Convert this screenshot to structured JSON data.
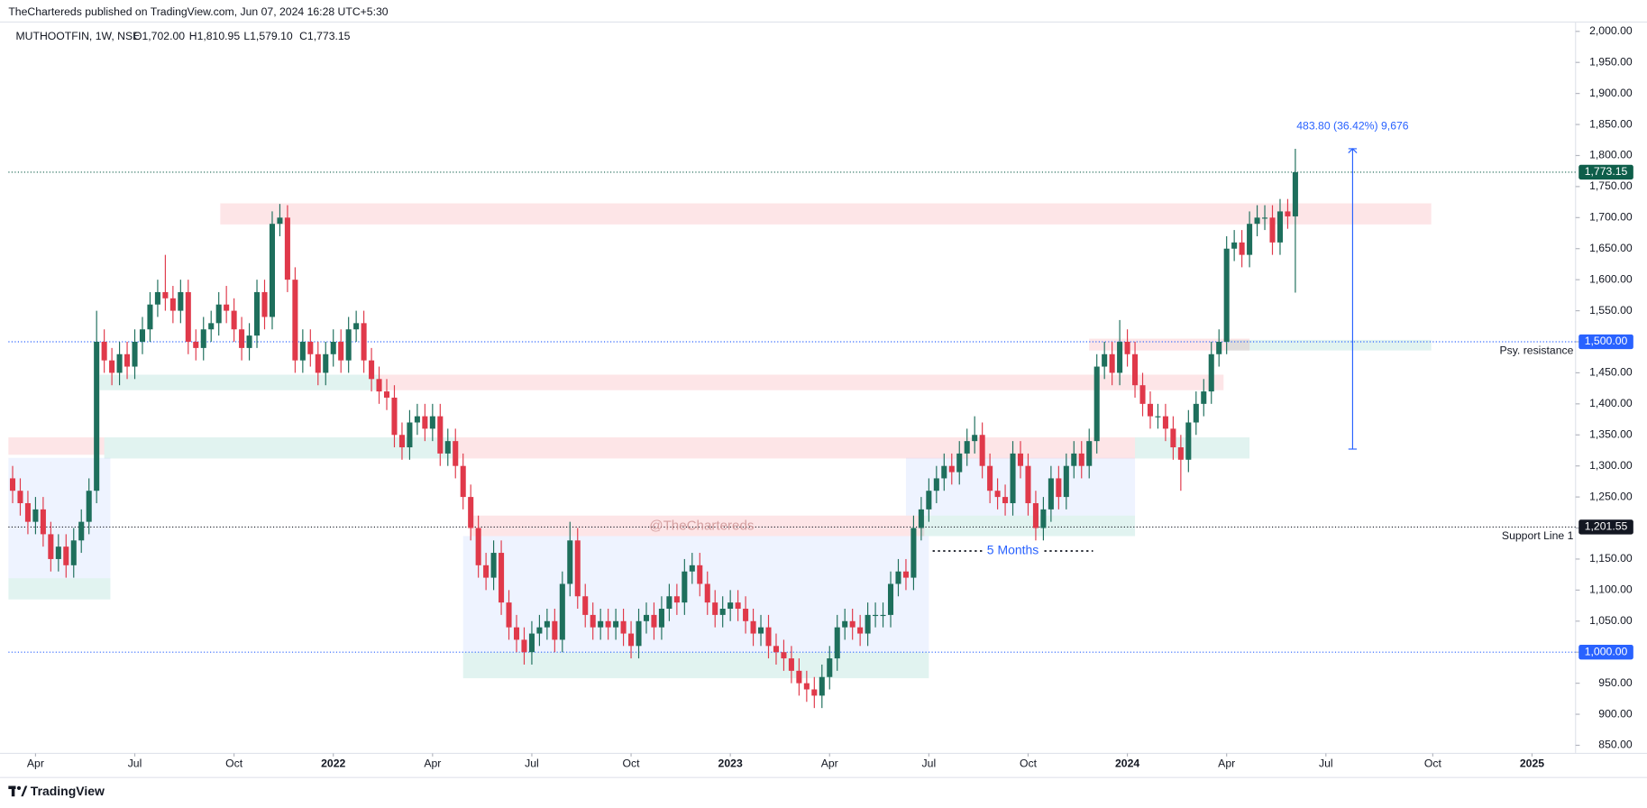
{
  "header": {
    "publisher": "TheChartereds published on TradingView.com, Jun 07, 2024 16:28 UTC+5:30",
    "symbol": "MUTHOOTFIN, 1W, NSE",
    "ohlc": [
      "O1,702.00",
      "H1,810.95",
      "L1,579.10",
      "C1,773.15"
    ]
  },
  "footer": {
    "brand": "TradingView"
  },
  "chart_data": {
    "type": "candlestick",
    "up_color": "#1e6f5c",
    "down_color": "#e0394a",
    "x": [
      0,
      1,
      2,
      3,
      4,
      5,
      6,
      7,
      8,
      9,
      10,
      11,
      12,
      13,
      14,
      15,
      16,
      17,
      18,
      19,
      20,
      21,
      22,
      23,
      24,
      25,
      26,
      27,
      28,
      29,
      30,
      31,
      32,
      33,
      34,
      35,
      36,
      37,
      38,
      39,
      40,
      41,
      42,
      43,
      44,
      45,
      46,
      47,
      48,
      49,
      50,
      51,
      52,
      53,
      54,
      55,
      56,
      57,
      58,
      59,
      60,
      61,
      62,
      63,
      64,
      65,
      66,
      67,
      68,
      69,
      70,
      71,
      72,
      73,
      74,
      75,
      76,
      77,
      78,
      79,
      80,
      81,
      82,
      83,
      84,
      85,
      86,
      87,
      88,
      89,
      90,
      91,
      92,
      93,
      94,
      95,
      96,
      97,
      98,
      99,
      100,
      101,
      102,
      103,
      104,
      105,
      106,
      107,
      108,
      109,
      110,
      111,
      112,
      113,
      114,
      115,
      116,
      117,
      118,
      119,
      120,
      121,
      122,
      123,
      124,
      125,
      126,
      127,
      128,
      129,
      130,
      131,
      132,
      133,
      134,
      135,
      136,
      137,
      138,
      139,
      140,
      141,
      142,
      143,
      144,
      145,
      146,
      147,
      148,
      149,
      150,
      151,
      152,
      153,
      154,
      155,
      156,
      157,
      158,
      159,
      160,
      161,
      162,
      163,
      164,
      165,
      166,
      167,
      168
    ],
    "open": [
      1280,
      1260,
      1240,
      1210,
      1230,
      1190,
      1150,
      1170,
      1140,
      1180,
      1210,
      1260,
      1500,
      1470,
      1450,
      1480,
      1460,
      1500,
      1520,
      1560,
      1580,
      1570,
      1550,
      1580,
      1500,
      1490,
      1520,
      1530,
      1560,
      1550,
      1520,
      1490,
      1510,
      1580,
      1540,
      1690,
      1700,
      1600,
      1470,
      1500,
      1480,
      1450,
      1480,
      1500,
      1470,
      1520,
      1530,
      1470,
      1440,
      1420,
      1410,
      1350,
      1330,
      1370,
      1380,
      1360,
      1380,
      1320,
      1340,
      1300,
      1250,
      1200,
      1140,
      1120,
      1160,
      1080,
      1040,
      1020,
      1000,
      1030,
      1040,
      1050,
      1020,
      1110,
      1180,
      1090,
      1060,
      1040,
      1050,
      1040,
      1050,
      1030,
      1010,
      1050,
      1060,
      1040,
      1070,
      1090,
      1080,
      1130,
      1140,
      1110,
      1080,
      1060,
      1070,
      1080,
      1070,
      1050,
      1030,
      1040,
      1010,
      1000,
      990,
      970,
      950,
      940,
      930,
      960,
      990,
      1040,
      1050,
      1040,
      1030,
      1060,
      1060,
      1060,
      1110,
      1130,
      1120,
      1200,
      1230,
      1260,
      1280,
      1300,
      1290,
      1320,
      1340,
      1350,
      1300,
      1260,
      1250,
      1240,
      1320,
      1300,
      1240,
      1200,
      1230,
      1280,
      1250,
      1300,
      1320,
      1300,
      1340,
      1460,
      1480,
      1450,
      1500,
      1480,
      1430,
      1400,
      1380,
      1380,
      1360,
      1330,
      1310,
      1370,
      1400,
      1420,
      1480,
      1500,
      1650,
      1660,
      1640,
      1690,
      1700,
      1700,
      1660,
      1710,
      1702
    ],
    "high": [
      1300,
      1280,
      1260,
      1250,
      1250,
      1210,
      1190,
      1190,
      1200,
      1230,
      1280,
      1550,
      1520,
      1490,
      1500,
      1500,
      1520,
      1540,
      1580,
      1600,
      1640,
      1590,
      1600,
      1600,
      1520,
      1540,
      1550,
      1580,
      1590,
      1570,
      1540,
      1530,
      1600,
      1600,
      1710,
      1722,
      1720,
      1620,
      1520,
      1520,
      1500,
      1500,
      1520,
      1520,
      1540,
      1550,
      1550,
      1490,
      1460,
      1440,
      1430,
      1370,
      1390,
      1400,
      1400,
      1400,
      1400,
      1360,
      1360,
      1320,
      1270,
      1220,
      1160,
      1180,
      1180,
      1100,
      1060,
      1040,
      1050,
      1060,
      1070,
      1070,
      1130,
      1210,
      1200,
      1110,
      1080,
      1070,
      1070,
      1070,
      1070,
      1050,
      1070,
      1080,
      1080,
      1090,
      1110,
      1110,
      1150,
      1160,
      1160,
      1130,
      1100,
      1090,
      1100,
      1100,
      1090,
      1070,
      1060,
      1060,
      1030,
      1020,
      1010,
      990,
      970,
      960,
      980,
      1010,
      1060,
      1070,
      1070,
      1060,
      1080,
      1080,
      1080,
      1130,
      1150,
      1150,
      1220,
      1250,
      1280,
      1300,
      1320,
      1320,
      1340,
      1360,
      1380,
      1370,
      1320,
      1280,
      1270,
      1340,
      1340,
      1320,
      1260,
      1250,
      1300,
      1300,
      1320,
      1340,
      1340,
      1360,
      1480,
      1500,
      1500,
      1535,
      1520,
      1500,
      1450,
      1420,
      1400,
      1400,
      1380,
      1350,
      1390,
      1420,
      1440,
      1500,
      1520,
      1670,
      1680,
      1680,
      1710,
      1720,
      1720,
      1720,
      1730,
      1730,
      1810.95
    ],
    "low": [
      1240,
      1220,
      1190,
      1190,
      1170,
      1130,
      1130,
      1120,
      1120,
      1160,
      1190,
      1240,
      1450,
      1430,
      1430,
      1440,
      1440,
      1480,
      1500,
      1540,
      1550,
      1530,
      1530,
      1480,
      1470,
      1470,
      1500,
      1510,
      1530,
      1500,
      1470,
      1470,
      1490,
      1520,
      1520,
      1670,
      1580,
      1450,
      1450,
      1460,
      1430,
      1430,
      1460,
      1450,
      1450,
      1500,
      1450,
      1420,
      1400,
      1390,
      1330,
      1310,
      1310,
      1350,
      1340,
      1340,
      1300,
      1300,
      1280,
      1230,
      1180,
      1120,
      1100,
      1100,
      1060,
      1020,
      1000,
      980,
      980,
      1010,
      1020,
      1000,
      1000,
      1090,
      1070,
      1040,
      1020,
      1020,
      1020,
      1020,
      1010,
      990,
      990,
      1030,
      1020,
      1020,
      1050,
      1060,
      1060,
      1110,
      1090,
      1060,
      1040,
      1040,
      1050,
      1050,
      1030,
      1010,
      1010,
      990,
      980,
      970,
      950,
      930,
      920,
      910,
      910,
      940,
      970,
      1020,
      1020,
      1010,
      1010,
      1040,
      1040,
      1040,
      1090,
      1100,
      1100,
      1180,
      1210,
      1240,
      1260,
      1270,
      1270,
      1300,
      1320,
      1280,
      1240,
      1230,
      1220,
      1220,
      1280,
      1220,
      1180,
      1180,
      1210,
      1230,
      1230,
      1280,
      1280,
      1280,
      1320,
      1440,
      1430,
      1430,
      1460,
      1410,
      1380,
      1360,
      1360,
      1340,
      1310,
      1260,
      1290,
      1350,
      1380,
      1400,
      1460,
      1480,
      1630,
      1620,
      1620,
      1670,
      1680,
      1640,
      1640,
      1682,
      1579.1
    ],
    "close": [
      1260,
      1240,
      1210,
      1230,
      1190,
      1150,
      1170,
      1140,
      1180,
      1210,
      1260,
      1500,
      1470,
      1450,
      1480,
      1460,
      1500,
      1520,
      1560,
      1580,
      1570,
      1550,
      1580,
      1500,
      1490,
      1520,
      1530,
      1560,
      1550,
      1520,
      1490,
      1510,
      1580,
      1540,
      1690,
      1700,
      1600,
      1470,
      1500,
      1480,
      1450,
      1480,
      1500,
      1470,
      1520,
      1530,
      1470,
      1440,
      1420,
      1410,
      1350,
      1330,
      1370,
      1380,
      1360,
      1380,
      1320,
      1340,
      1300,
      1250,
      1200,
      1140,
      1120,
      1160,
      1080,
      1040,
      1020,
      1000,
      1030,
      1040,
      1050,
      1020,
      1110,
      1180,
      1090,
      1060,
      1040,
      1050,
      1040,
      1050,
      1030,
      1010,
      1050,
      1060,
      1040,
      1070,
      1090,
      1080,
      1130,
      1140,
      1110,
      1080,
      1060,
      1070,
      1080,
      1070,
      1050,
      1030,
      1040,
      1010,
      1000,
      990,
      970,
      950,
      940,
      930,
      960,
      990,
      1040,
      1050,
      1040,
      1030,
      1060,
      1060,
      1060,
      1110,
      1130,
      1120,
      1200,
      1230,
      1260,
      1280,
      1300,
      1290,
      1320,
      1340,
      1350,
      1300,
      1260,
      1250,
      1240,
      1320,
      1300,
      1240,
      1200,
      1230,
      1280,
      1250,
      1300,
      1320,
      1300,
      1340,
      1460,
      1480,
      1450,
      1500,
      1480,
      1430,
      1400,
      1380,
      1380,
      1360,
      1330,
      1310,
      1370,
      1400,
      1420,
      1480,
      1500,
      1650,
      1660,
      1640,
      1690,
      1700,
      1700,
      1660,
      1710,
      1702,
      1773.15
    ],
    "xlim": [
      -0.55,
      204.7
    ],
    "xticks": [
      {
        "value": 3,
        "label": "Apr"
      },
      {
        "value": 16,
        "label": "Jul"
      },
      {
        "value": 29,
        "label": "Oct"
      },
      {
        "value": 42,
        "label": "2022"
      },
      {
        "value": 55,
        "label": "Apr"
      },
      {
        "value": 68,
        "label": "Jul"
      },
      {
        "value": 81,
        "label": "Oct"
      },
      {
        "value": 94,
        "label": "2023"
      },
      {
        "value": 107,
        "label": "Apr"
      },
      {
        "value": 120,
        "label": "Jul"
      },
      {
        "value": 133,
        "label": "Oct"
      },
      {
        "value": 146,
        "label": "2024"
      },
      {
        "value": 159,
        "label": "Apr"
      },
      {
        "value": 172,
        "label": "Jul"
      },
      {
        "value": 186,
        "label": "Oct"
      },
      {
        "value": 199,
        "label": "2025"
      }
    ],
    "ylim": [
      837,
      2015
    ],
    "yticks": [
      {
        "value": 850,
        "label": "850.00"
      },
      {
        "value": 900,
        "label": "900.00"
      },
      {
        "value": 950,
        "label": "950.00"
      },
      {
        "value": 1000,
        "label": "1,000.00"
      },
      {
        "value": 1050,
        "label": "1,050.00"
      },
      {
        "value": 1100,
        "label": "1,100.00"
      },
      {
        "value": 1150,
        "label": "1,150.00"
      },
      {
        "value": 1200,
        "label": "1,200.00"
      },
      {
        "value": 1250,
        "label": "1,250.00"
      },
      {
        "value": 1300,
        "label": "1,300.00"
      },
      {
        "value": 1350,
        "label": "1,350.00"
      },
      {
        "value": 1400,
        "label": "1,400.00"
      },
      {
        "value": 1450,
        "label": "1,450.00"
      },
      {
        "value": 1500,
        "label": "1,500.00"
      },
      {
        "value": 1550,
        "label": "1,550.00"
      },
      {
        "value": 1600,
        "label": "1,600.00"
      },
      {
        "value": 1650,
        "label": "1,650.00"
      },
      {
        "value": 1700,
        "label": "1,700.00"
      },
      {
        "value": 1750,
        "label": "1,750.00"
      },
      {
        "value": 1800,
        "label": "1,800.00"
      },
      {
        "value": 1850,
        "label": "1,850.00"
      },
      {
        "value": 1900,
        "label": "1,900.00"
      },
      {
        "value": 1950,
        "label": "1,950.00"
      },
      {
        "value": 2000,
        "label": "2,000.00"
      }
    ],
    "zones": [
      {
        "x": [
          -0.55,
          12.8
        ],
        "y": [
          1119,
          1313
        ],
        "color": "rgba(41,98,255,0.08)"
      },
      {
        "x": [
          59,
          120
        ],
        "y": [
          1000,
          1187
        ],
        "color": "rgba(41,98,255,0.08)"
      },
      {
        "x": [
          117,
          147
        ],
        "y": [
          1220,
          1313
        ],
        "color": "rgba(41,98,255,0.08)"
      },
      {
        "x": [
          27.2,
          185.8
        ],
        "y": [
          1689,
          1723
        ],
        "color": "rgba(242,54,69,0.13)"
      },
      {
        "x": [
          48,
          158.6
        ],
        "y": [
          1422,
          1447
        ],
        "color": "rgba(242,54,69,0.13)"
      },
      {
        "x": [
          -0.55,
          12
        ],
        "y": [
          1318,
          1346
        ],
        "color": "rgba(242,54,69,0.13)"
      },
      {
        "x": [
          58,
          147
        ],
        "y": [
          1312,
          1346
        ],
        "color": "rgba(242,54,69,0.13)"
      },
      {
        "x": [
          60,
          119.4
        ],
        "y": [
          1187,
          1220
        ],
        "color": "rgba(242,54,69,0.13)"
      },
      {
        "x": [
          141,
          162
        ],
        "y": [
          1486,
          1505
        ],
        "color": "rgba(242,54,69,0.13)"
      },
      {
        "x": [
          -0.55,
          12.8
        ],
        "y": [
          1085,
          1119
        ],
        "color": "rgba(8,153,129,0.12)"
      },
      {
        "x": [
          11.4,
          48
        ],
        "y": [
          1422,
          1447
        ],
        "color": "rgba(8,153,129,0.12)"
      },
      {
        "x": [
          12,
          58
        ],
        "y": [
          1312,
          1346
        ],
        "color": "rgba(8,153,129,0.12)"
      },
      {
        "x": [
          59,
          120
        ],
        "y": [
          958,
          1000
        ],
        "color": "rgba(8,153,129,0.12)"
      },
      {
        "x": [
          119,
          147
        ],
        "y": [
          1187,
          1220
        ],
        "color": "rgba(8,153,129,0.12)"
      },
      {
        "x": [
          147,
          162
        ],
        "y": [
          1312,
          1346
        ],
        "color": "rgba(8,153,129,0.12)"
      },
      {
        "x": [
          159,
          185.8
        ],
        "y": [
          1486,
          1503
        ],
        "color": "rgba(8,153,129,0.12)"
      }
    ],
    "hlines": [
      {
        "value": 1773.15,
        "label": "1,773.15",
        "color": "#0e5e4a"
      },
      {
        "value": 1500,
        "label": "1,500.00",
        "color": "#2962ff",
        "note": "Psy. resistance"
      },
      {
        "value": 1201.55,
        "label": "1,201.55",
        "color": "#131722",
        "note": "Support Line 1"
      },
      {
        "value": 1000,
        "label": "1,000.00",
        "color": "#2962ff"
      }
    ],
    "measure": {
      "x": 175.5,
      "from": 1327.15,
      "to": 1810.95,
      "label": "483.80 (36.42%) 9,676",
      "color": "#2962ff"
    },
    "range_note": {
      "x": [
        120.5,
        141.5
      ],
      "y": 1163,
      "label": "5 Months",
      "color": "#2962ff"
    },
    "watermark": "@TheChartereds"
  }
}
